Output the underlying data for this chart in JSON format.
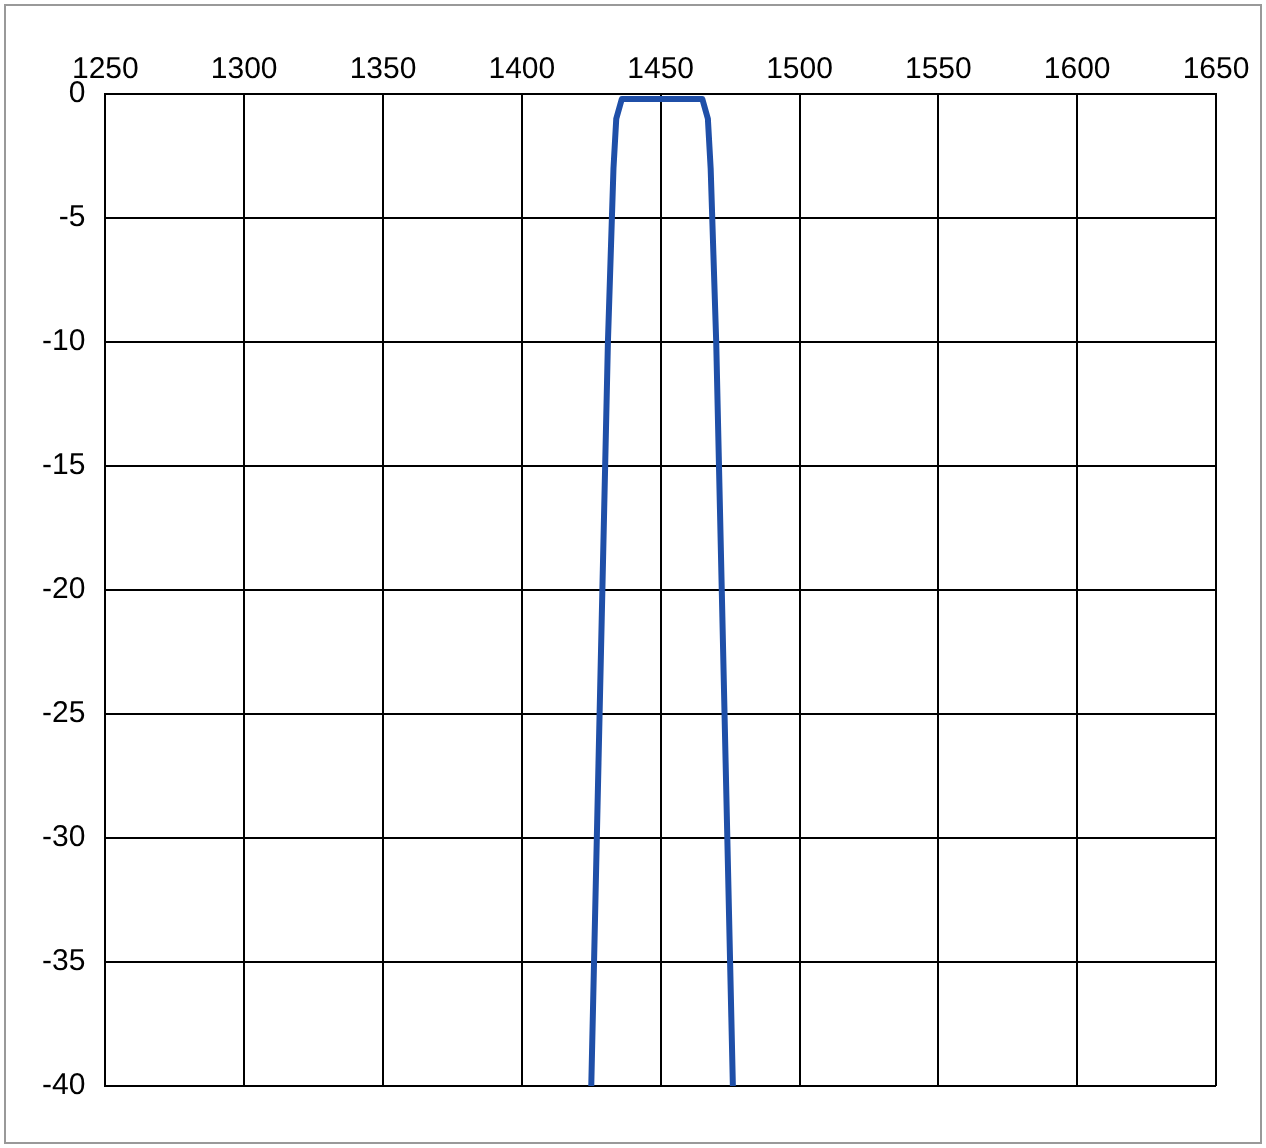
{
  "chart_data": {
    "type": "line",
    "x": [
      1425,
      1427,
      1429,
      1431,
      1433,
      1434,
      1436,
      1465,
      1467,
      1468,
      1470,
      1472,
      1474,
      1476
    ],
    "series": [
      {
        "color": "#1f4fa8",
        "values": [
          -40,
          -30,
          -20,
          -10,
          -3,
          -1,
          -0.2,
          -0.2,
          -1,
          -3,
          -10,
          -20,
          -30,
          -40
        ]
      }
    ],
    "xlim": [
      1250,
      1650
    ],
    "xticks": [
      1250,
      1300,
      1350,
      1400,
      1450,
      1500,
      1550,
      1600,
      1650
    ],
    "ylim": [
      -40,
      0
    ],
    "yticks": [
      0,
      -5,
      -10,
      -15,
      -20,
      -25,
      -30,
      -35,
      -40
    ],
    "grid": true,
    "legend": false,
    "marker": "none",
    "line_style": "solid"
  }
}
